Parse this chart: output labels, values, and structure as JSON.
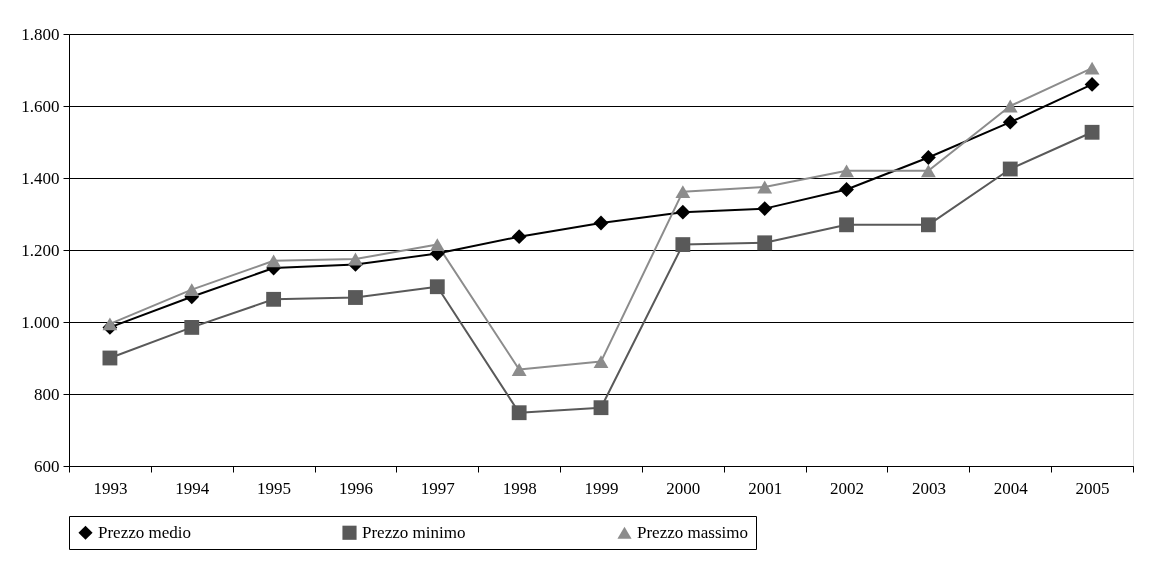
{
  "chart_data": {
    "type": "line",
    "categories": [
      "1993",
      "1994",
      "1995",
      "1996",
      "1997",
      "1998",
      "1999",
      "2000",
      "2001",
      "2002",
      "2003",
      "2004",
      "2005"
    ],
    "series": [
      {
        "name": "Prezzo medio",
        "color": "#000000",
        "marker": "diamond",
        "values": [
          985,
          1070,
          1150,
          1160,
          1190,
          1237,
          1275,
          1305,
          1315,
          1368,
          1457,
          1555,
          1660
        ]
      },
      {
        "name": "Prezzo minimo",
        "color": "#595959",
        "marker": "square",
        "values": [
          900,
          985,
          1063,
          1068,
          1098,
          748,
          762,
          1215,
          1220,
          1270,
          1270,
          1425,
          1527
        ]
      },
      {
        "name": "Prezzo massimo",
        "color": "#8c8c8c",
        "marker": "triangle",
        "values": [
          995,
          1090,
          1170,
          1175,
          1215,
          868,
          890,
          1362,
          1375,
          1420,
          1420,
          1600,
          1705
        ]
      }
    ],
    "ylim": [
      600,
      1800
    ],
    "yticks": [
      {
        "value": 600,
        "label": "600"
      },
      {
        "value": 800,
        "label": "800"
      },
      {
        "value": 1000,
        "label": "1.000"
      },
      {
        "value": 1200,
        "label": "1.200"
      },
      {
        "value": 1400,
        "label": "1.400"
      },
      {
        "value": 1600,
        "label": "1.600"
      },
      {
        "value": 1800,
        "label": "1.800"
      }
    ],
    "grid": "y",
    "legend": "bottom",
    "line_style": "solid"
  }
}
